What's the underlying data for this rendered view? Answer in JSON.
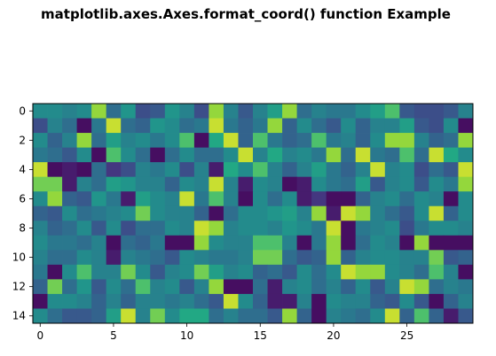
{
  "chart_data": {
    "type": "heatmap",
    "title": "matplotlib.axes.Axes.format_coord() function Example",
    "xlabel": "",
    "ylabel": "",
    "colormap": "viridis",
    "value_range": [
      0,
      1
    ],
    "xlim": [
      -0.5,
      29.5
    ],
    "ylim": [
      14.5,
      -0.5
    ],
    "x_ticks": [
      0,
      5,
      10,
      15,
      20,
      25
    ],
    "y_ticks": [
      0,
      2,
      4,
      6,
      8,
      10,
      12,
      14
    ],
    "grid": false,
    "legend": "none",
    "rows": 15,
    "cols": 30,
    "values": [
      [
        0.6,
        0.6,
        0.55,
        0.6,
        0.9,
        0.45,
        0.65,
        0.3,
        0.35,
        0.65,
        0.55,
        0.3,
        0.9,
        0.55,
        0.35,
        0.55,
        0.7,
        0.9,
        0.45,
        0.55,
        0.5,
        0.5,
        0.6,
        0.7,
        0.8,
        0.35,
        0.3,
        0.3,
        0.35,
        0.55
      ],
      [
        0.3,
        0.55,
        0.45,
        0.05,
        0.5,
        0.95,
        0.45,
        0.4,
        0.65,
        0.6,
        0.45,
        0.5,
        0.95,
        0.5,
        0.4,
        0.5,
        0.9,
        0.4,
        0.6,
        0.45,
        0.35,
        0.6,
        0.4,
        0.55,
        0.55,
        0.7,
        0.35,
        0.3,
        0.6,
        0.05
      ],
      [
        0.6,
        0.4,
        0.55,
        0.9,
        0.45,
        0.7,
        0.55,
        0.6,
        0.5,
        0.6,
        0.8,
        0.05,
        0.75,
        0.95,
        0.4,
        0.8,
        0.5,
        0.4,
        0.45,
        0.8,
        0.5,
        0.55,
        0.4,
        0.6,
        0.9,
        0.9,
        0.55,
        0.4,
        0.45,
        0.9
      ],
      [
        0.5,
        0.45,
        0.35,
        0.6,
        0.05,
        0.8,
        0.6,
        0.45,
        0.05,
        0.45,
        0.6,
        0.45,
        0.45,
        0.6,
        0.95,
        0.55,
        0.75,
        0.55,
        0.6,
        0.5,
        0.9,
        0.45,
        0.95,
        0.5,
        0.45,
        0.8,
        0.45,
        0.95,
        0.75,
        0.6
      ],
      [
        0.95,
        0.05,
        0.1,
        0.05,
        0.45,
        0.2,
        0.3,
        0.55,
        0.5,
        0.6,
        0.3,
        0.55,
        0.1,
        0.75,
        0.6,
        0.8,
        0.55,
        0.4,
        0.55,
        0.7,
        0.5,
        0.4,
        0.55,
        0.95,
        0.55,
        0.6,
        0.3,
        0.45,
        0.35,
        0.95
      ],
      [
        0.85,
        0.85,
        0.1,
        0.55,
        0.45,
        0.7,
        0.65,
        0.55,
        0.55,
        0.4,
        0.6,
        0.55,
        0.95,
        0.55,
        0.1,
        0.6,
        0.55,
        0.05,
        0.1,
        0.6,
        0.5,
        0.45,
        0.7,
        0.35,
        0.55,
        0.6,
        0.35,
        0.6,
        0.5,
        0.9
      ],
      [
        0.6,
        0.9,
        0.4,
        0.35,
        0.65,
        0.5,
        0.1,
        0.7,
        0.6,
        0.55,
        0.95,
        0.5,
        0.8,
        0.55,
        0.05,
        0.6,
        0.45,
        0.6,
        0.1,
        0.2,
        0.05,
        0.05,
        0.4,
        0.55,
        0.6,
        0.45,
        0.6,
        0.55,
        0.05,
        0.6
      ],
      [
        0.4,
        0.35,
        0.6,
        0.45,
        0.5,
        0.55,
        0.6,
        0.85,
        0.6,
        0.55,
        0.55,
        0.4,
        0.05,
        0.45,
        0.6,
        0.6,
        0.65,
        0.7,
        0.55,
        0.9,
        0.1,
        0.95,
        0.9,
        0.55,
        0.45,
        0.35,
        0.6,
        0.95,
        0.4,
        0.6
      ],
      [
        0.55,
        0.4,
        0.45,
        0.6,
        0.35,
        0.6,
        0.3,
        0.45,
        0.45,
        0.6,
        0.55,
        0.95,
        0.9,
        0.55,
        0.6,
        0.6,
        0.55,
        0.65,
        0.6,
        0.5,
        0.95,
        0.05,
        0.5,
        0.55,
        0.6,
        0.3,
        0.5,
        0.6,
        0.6,
        0.55
      ],
      [
        0.6,
        0.5,
        0.5,
        0.45,
        0.55,
        0.05,
        0.45,
        0.4,
        0.5,
        0.05,
        0.05,
        0.9,
        0.6,
        0.55,
        0.55,
        0.8,
        0.8,
        0.55,
        0.05,
        0.5,
        0.9,
        0.05,
        0.45,
        0.6,
        0.55,
        0.05,
        0.9,
        0.05,
        0.05,
        0.05
      ],
      [
        0.55,
        0.45,
        0.45,
        0.6,
        0.55,
        0.1,
        0.55,
        0.5,
        0.45,
        0.35,
        0.6,
        0.55,
        0.5,
        0.5,
        0.55,
        0.85,
        0.85,
        0.45,
        0.35,
        0.4,
        0.9,
        0.4,
        0.55,
        0.6,
        0.6,
        0.55,
        0.55,
        0.85,
        0.35,
        0.4
      ],
      [
        0.5,
        0.05,
        0.6,
        0.8,
        0.55,
        0.55,
        0.85,
        0.6,
        0.35,
        0.55,
        0.6,
        0.85,
        0.7,
        0.55,
        0.6,
        0.4,
        0.45,
        0.35,
        0.6,
        0.45,
        0.6,
        0.95,
        0.9,
        0.9,
        0.6,
        0.55,
        0.45,
        0.8,
        0.55,
        0.05
      ],
      [
        0.4,
        0.85,
        0.45,
        0.65,
        0.35,
        0.6,
        0.45,
        0.8,
        0.55,
        0.6,
        0.35,
        0.55,
        0.9,
        0.05,
        0.05,
        0.45,
        0.1,
        0.55,
        0.6,
        0.45,
        0.55,
        0.4,
        0.6,
        0.35,
        0.55,
        0.95,
        0.9,
        0.45,
        0.55,
        0.5
      ],
      [
        0.05,
        0.6,
        0.6,
        0.55,
        0.4,
        0.55,
        0.4,
        0.55,
        0.55,
        0.5,
        0.55,
        0.45,
        0.35,
        0.95,
        0.6,
        0.4,
        0.1,
        0.1,
        0.55,
        0.05,
        0.6,
        0.55,
        0.55,
        0.4,
        0.35,
        0.6,
        0.35,
        0.05,
        0.4,
        0.55
      ],
      [
        0.6,
        0.45,
        0.35,
        0.35,
        0.4,
        0.7,
        0.95,
        0.55,
        0.85,
        0.6,
        0.75,
        0.75,
        0.45,
        0.55,
        0.45,
        0.45,
        0.35,
        0.9,
        0.4,
        0.05,
        0.55,
        0.5,
        0.45,
        0.6,
        0.95,
        0.4,
        0.8,
        0.4,
        0.1,
        0.35
      ]
    ]
  }
}
